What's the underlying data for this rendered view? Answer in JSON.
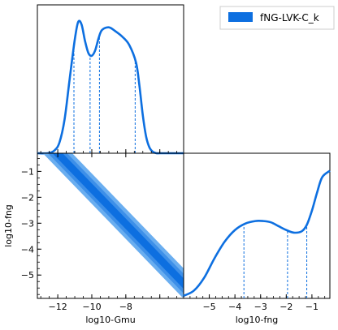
{
  "figure": {
    "legend_label": "fNG-LVK-C_k",
    "accent": "#0d6fe0",
    "accent_light": "#6aaef0",
    "accent_mid": "#3d8fe8"
  },
  "chart_data": [
    {
      "type": "line",
      "panel": "top-left",
      "description_of_axes": "1D marginal of log10-Gmu",
      "xlim": [
        -13.2,
        -4.6
      ],
      "x": [
        -13.2,
        -12.6,
        -12.2,
        -11.9,
        -11.6,
        -11.3,
        -11.0,
        -10.8,
        -10.6,
        -10.4,
        -10.2,
        -10.0,
        -9.8,
        -9.6,
        -9.4,
        -9.0,
        -8.6,
        -8.2,
        -7.8,
        -7.4,
        -7.2,
        -7.0,
        -6.8,
        -6.6,
        -6.4,
        -6.2,
        -6.0,
        -5.6,
        -5.2,
        -4.6
      ],
      "y": [
        0.0,
        0.0,
        0.02,
        0.08,
        0.25,
        0.55,
        0.84,
        0.97,
        0.95,
        0.83,
        0.74,
        0.72,
        0.76,
        0.85,
        0.91,
        0.93,
        0.9,
        0.86,
        0.8,
        0.67,
        0.5,
        0.28,
        0.12,
        0.04,
        0.01,
        0.0,
        0.0,
        0.0,
        0.0,
        0.0
      ],
      "dashed_x": [
        -11.05,
        -10.1,
        -9.55,
        -7.45
      ],
      "series": [
        {
          "name": "fNG-LVK-C_k"
        }
      ],
      "legend": "top-right"
    },
    {
      "type": "contour",
      "panel": "bottom-left",
      "xlabel": "log10-Gmu",
      "ylabel": "log10-fng",
      "xlim": [
        -13.2,
        -4.6
      ],
      "ylim": [
        -5.9,
        -0.3
      ],
      "x_ticks": [
        -12,
        -10,
        -8
      ],
      "y_ticks": [
        -1,
        -2,
        -3,
        -4,
        -5
      ],
      "ridge": [
        [
          -11.9,
          -0.3
        ],
        [
          -4.6,
          -5.4
        ]
      ],
      "levels": [
        "68%",
        "95%"
      ]
    },
    {
      "type": "line",
      "panel": "bottom-right",
      "description_of_axes": "1D marginal of log10-fng",
      "xlabel": "log10-fng",
      "xlim": [
        -6.0,
        -0.3
      ],
      "x_ticks": [
        -5,
        -4,
        -3,
        -2,
        -1
      ],
      "x": [
        -6.0,
        -5.6,
        -5.2,
        -4.8,
        -4.4,
        -4.0,
        -3.6,
        -3.2,
        -2.9,
        -2.6,
        -2.3,
        -2.0,
        -1.7,
        -1.4,
        -1.2,
        -1.0,
        -0.8,
        -0.6,
        -0.3
      ],
      "y": [
        0.02,
        0.06,
        0.16,
        0.31,
        0.44,
        0.53,
        0.58,
        0.6,
        0.6,
        0.59,
        0.56,
        0.53,
        0.51,
        0.52,
        0.57,
        0.68,
        0.82,
        0.94,
        0.99
      ],
      "dashed_x": [
        -3.65,
        -1.95,
        -1.2
      ]
    }
  ]
}
